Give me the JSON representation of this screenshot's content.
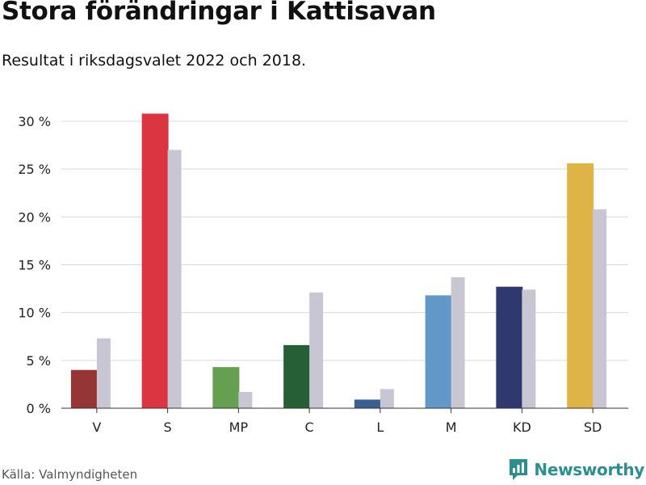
{
  "header": {
    "title": "Stora förändringar i Kattisavan",
    "subtitle": "Resultat i riksdagsvalet 2022 och 2018."
  },
  "footer": {
    "source": "Källa: Valmyndigheten",
    "brand": "Newsworthy",
    "brand_color": "#2a8f8f"
  },
  "chart_data": {
    "type": "bar",
    "categories": [
      "V",
      "S",
      "MP",
      "C",
      "L",
      "M",
      "KD",
      "SD"
    ],
    "series": [
      {
        "values": [
          4.0,
          30.8,
          4.3,
          6.6,
          0.9,
          11.8,
          12.7,
          25.6
        ],
        "colors": [
          "#963535",
          "#da3540",
          "#64a050",
          "#265f36",
          "#3a5f94",
          "#6298c8",
          "#2f3970",
          "#dfb447"
        ]
      },
      {
        "values": [
          7.3,
          27.0,
          1.7,
          12.1,
          2.0,
          13.7,
          12.4,
          20.8
        ],
        "color": "#c8c6d3"
      }
    ],
    "yticks": [
      0,
      5,
      10,
      15,
      20,
      25,
      30
    ],
    "ytick_labels": [
      "0 %",
      "5 %",
      "10 %",
      "15 %",
      "20 %",
      "25 %",
      "30 %"
    ],
    "ylim": [
      0,
      30
    ],
    "grid": true,
    "xlabel": "",
    "ylabel": ""
  }
}
